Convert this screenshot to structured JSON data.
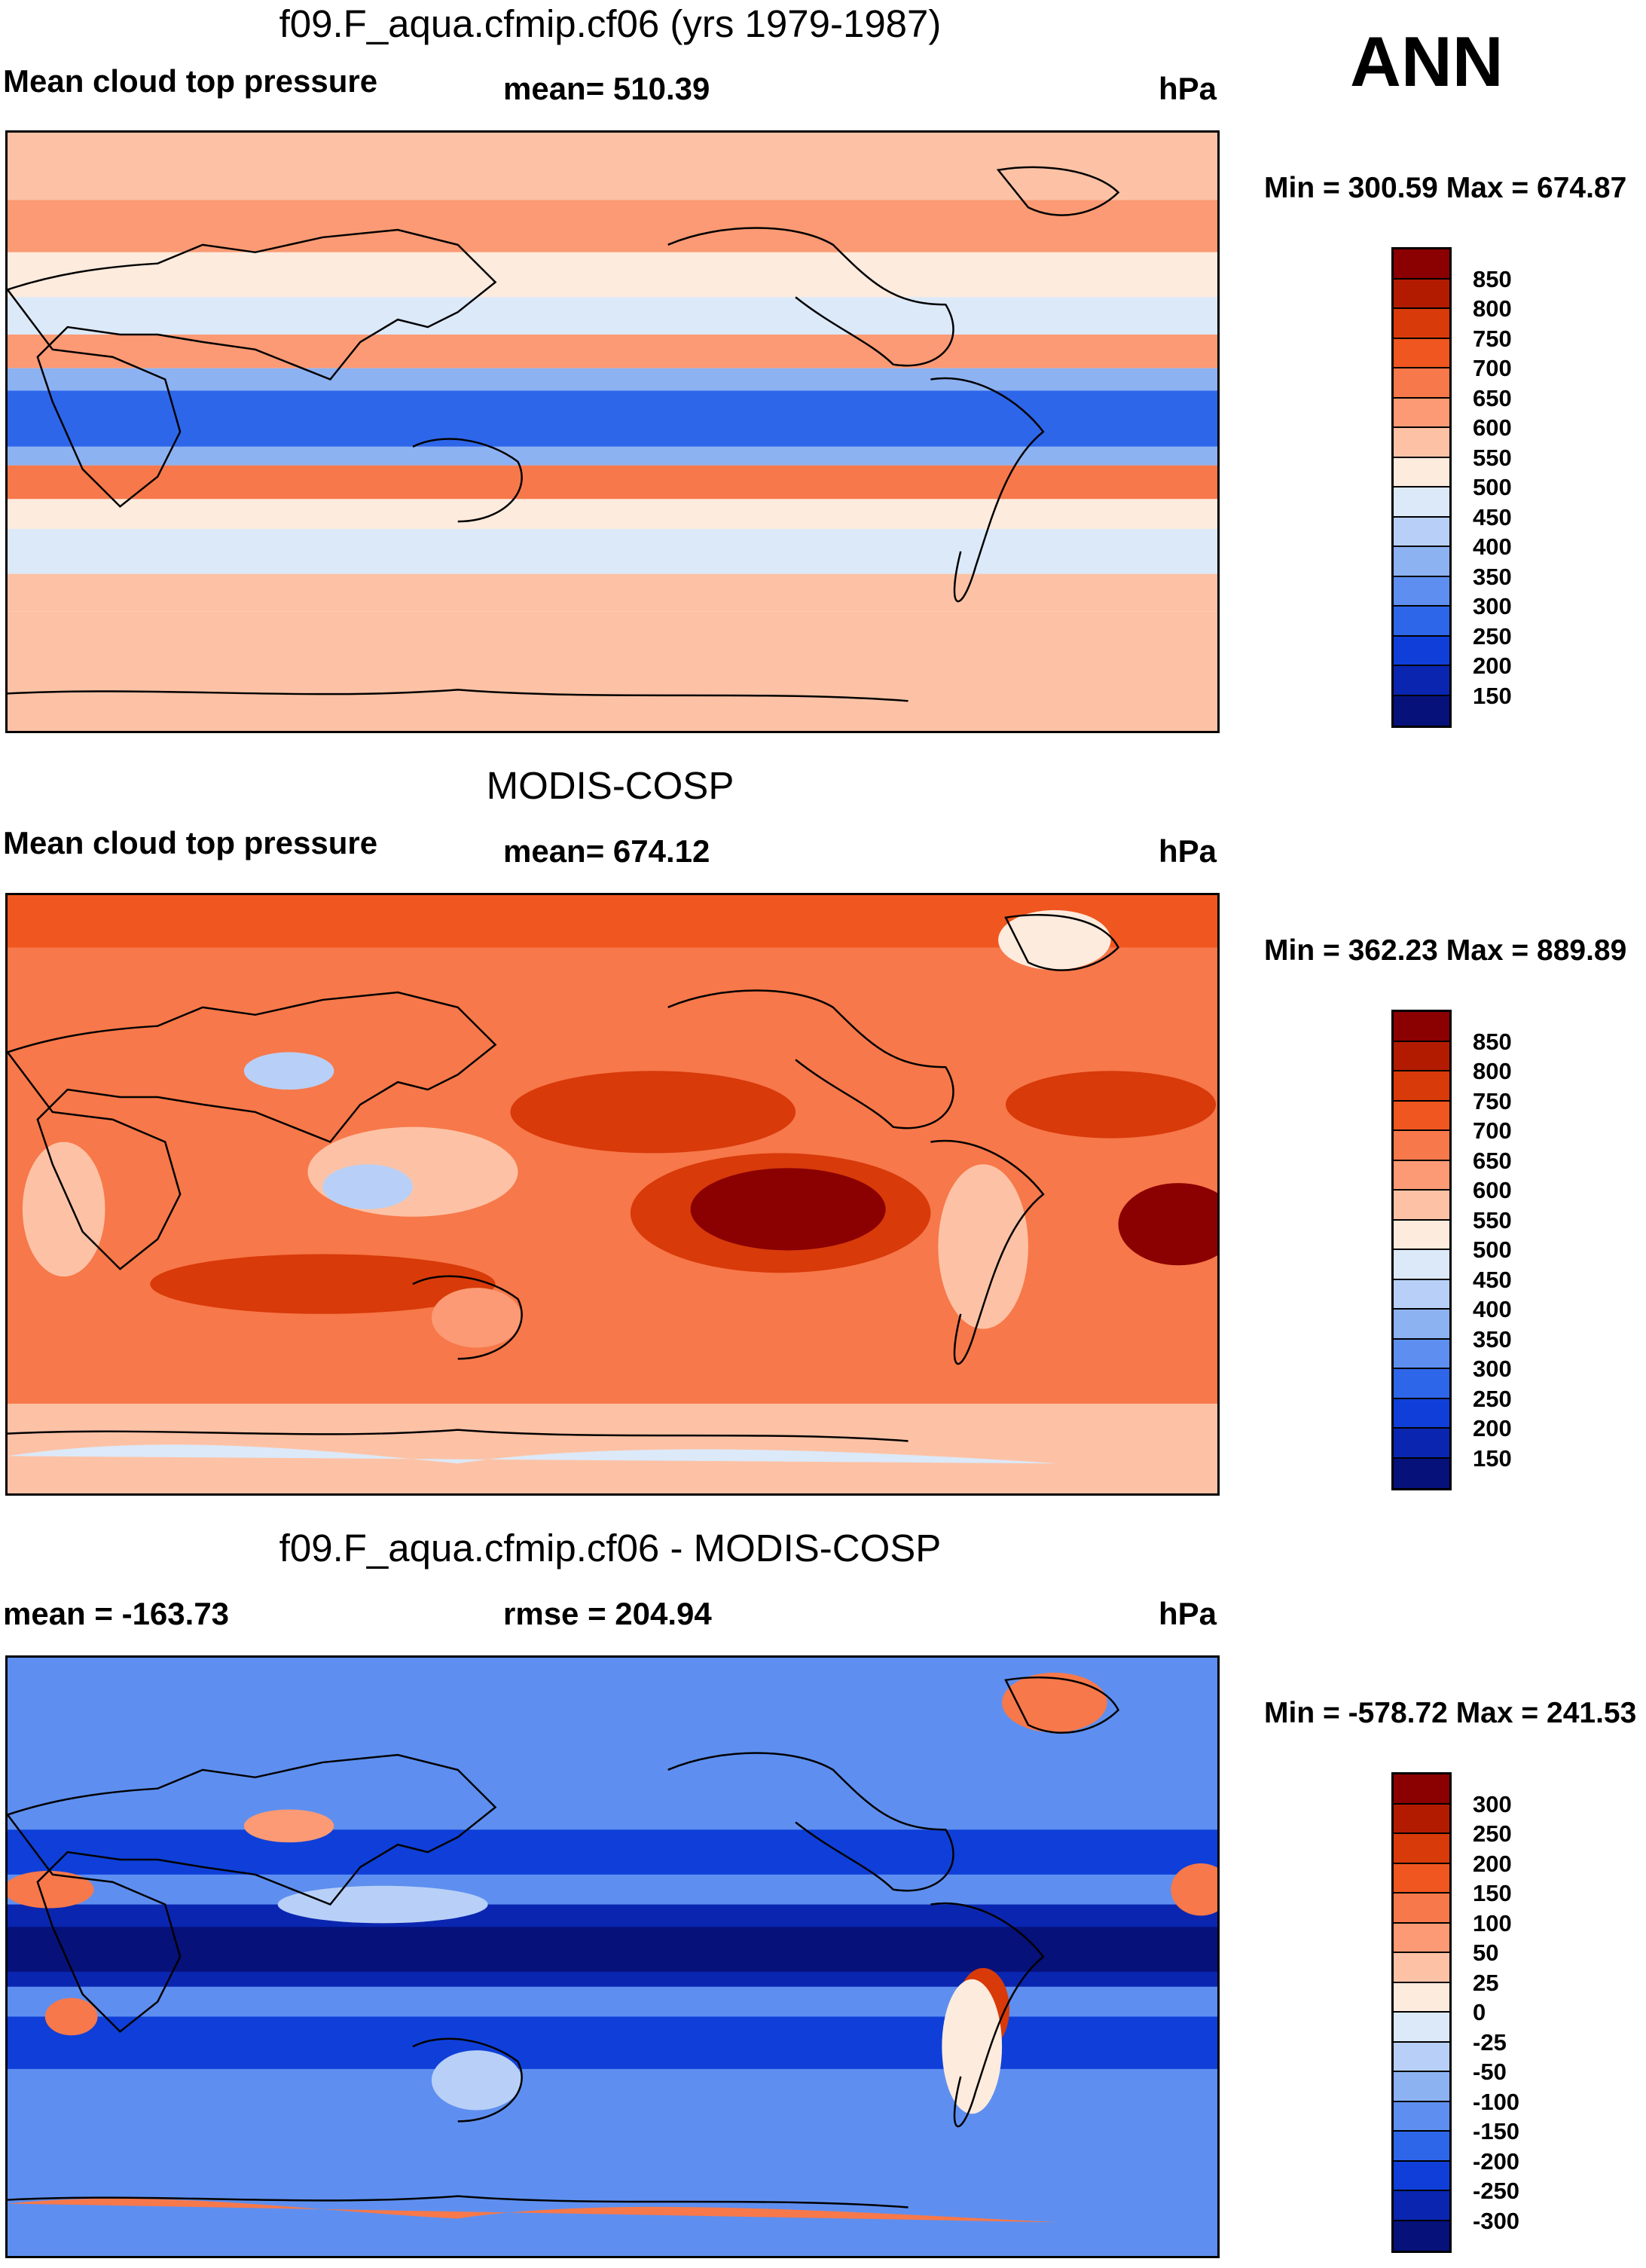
{
  "season": "ANN",
  "panels": [
    {
      "title": "f09.F_aqua.cfmip.cf06 (yrs 1979-1987)",
      "left_label": "Mean cloud top pressure",
      "center_label": "mean= 510.39",
      "units": "hPa",
      "min_max": "Min = 300.59 Max = 674.87"
    },
    {
      "title": "MODIS-COSP",
      "left_label": "Mean cloud top pressure",
      "center_label": "mean= 674.12",
      "units": "hPa",
      "min_max": "Min = 362.23 Max = 889.89"
    },
    {
      "title": "f09.F_aqua.cfmip.cf06 - MODIS-COSP",
      "left_label": "mean = -163.73",
      "center_label": "rmse = 204.94",
      "units": "hPa",
      "min_max": "Min = -578.72 Max = 241.53"
    }
  ],
  "colorbars": {
    "absolute": {
      "labels": [
        "850",
        "800",
        "750",
        "700",
        "650",
        "600",
        "550",
        "500",
        "450",
        "400",
        "350",
        "300",
        "250",
        "200",
        "150"
      ],
      "colors": [
        "#8b0000",
        "#b31b00",
        "#d83a0a",
        "#f0561f",
        "#f7784a",
        "#fb9a74",
        "#fdc2a5",
        "#fdebdd",
        "#dce9f9",
        "#b8d0f7",
        "#8db2f2",
        "#5e8ff0",
        "#2e66ea",
        "#0f3fd8",
        "#0a26b0",
        "#06117a"
      ]
    },
    "difference": {
      "labels": [
        "300",
        "250",
        "200",
        "150",
        "100",
        "50",
        "25",
        "0",
        "-25",
        "-50",
        "-100",
        "-150",
        "-200",
        "-250",
        "-300"
      ],
      "colors": [
        "#8b0000",
        "#b31b00",
        "#d83a0a",
        "#f0561f",
        "#f7784a",
        "#fb9a74",
        "#fdc2a5",
        "#fdebdd",
        "#dce9f9",
        "#b8d0f7",
        "#8db2f2",
        "#5e8ff0",
        "#2e66ea",
        "#0f3fd8",
        "#0a26b0",
        "#06117a"
      ]
    }
  },
  "chart_data": [
    {
      "type": "heatmap",
      "title": "f09.F_aqua.cfmip.cf06 (yrs 1979-1987)",
      "variable": "Mean cloud top pressure",
      "units": "hPa",
      "mean": 510.39,
      "min": 300.59,
      "max": 674.87,
      "levels": [
        150,
        200,
        250,
        300,
        350,
        400,
        450,
        500,
        550,
        600,
        650,
        700,
        750,
        800,
        850
      ],
      "zonal_bands": [
        {
          "lat_range": [
            60,
            90
          ],
          "approx_value": 590
        },
        {
          "lat_range": [
            45,
            60
          ],
          "approx_value": 620
        },
        {
          "lat_range": [
            30,
            45
          ],
          "approx_value": 540
        },
        {
          "lat_range": [
            20,
            30
          ],
          "approx_value": 450
        },
        {
          "lat_range": [
            10,
            20
          ],
          "approx_value": 620
        },
        {
          "lat_range": [
            -8,
            10
          ],
          "approx_value": 300
        },
        {
          "lat_range": [
            -20,
            -8
          ],
          "approx_value": 620
        },
        {
          "lat_range": [
            -35,
            -20
          ],
          "approx_value": 460
        },
        {
          "lat_range": [
            -60,
            -35
          ],
          "approx_value": 580
        },
        {
          "lat_range": [
            -90,
            -60
          ],
          "approx_value": 600
        }
      ]
    },
    {
      "type": "heatmap",
      "title": "MODIS-COSP",
      "variable": "Mean cloud top pressure",
      "units": "hPa",
      "mean": 674.12,
      "min": 362.23,
      "max": 889.89,
      "levels": [
        150,
        200,
        250,
        300,
        350,
        400,
        450,
        500,
        550,
        600,
        650,
        700,
        750,
        800,
        850
      ]
    },
    {
      "type": "heatmap",
      "title": "f09.F_aqua.cfmip.cf06 - MODIS-COSP",
      "units": "hPa",
      "mean": -163.73,
      "rmse": 204.94,
      "min": -578.72,
      "max": 241.53,
      "levels": [
        -300,
        -250,
        -200,
        -150,
        -100,
        -50,
        -25,
        0,
        25,
        50,
        100,
        150,
        200,
        250,
        300
      ]
    }
  ]
}
